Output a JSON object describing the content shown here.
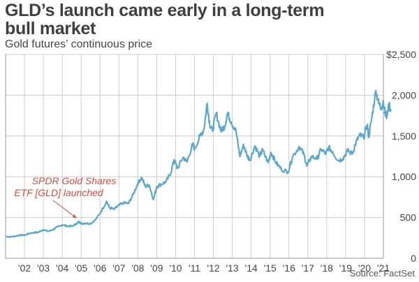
{
  "header": {
    "title_line1": "GLD’s launch came early in a long-term",
    "title_line2": "bull market",
    "subtitle": "Gold futures’ continuous price"
  },
  "source": "Source: FactSet",
  "colors": {
    "line": "#5aa9cc",
    "annotation": "#e04a3a",
    "grid": "#cccccc",
    "axis": "#999999",
    "title": "#3f3f3f"
  },
  "chart_data": {
    "type": "line",
    "title": "GLD’s launch came early in a long-term bull market",
    "subtitle": "Gold futures’ continuous price",
    "xlabel": "",
    "ylabel": "",
    "xlim": [
      2001.0,
      2021.0
    ],
    "ylim": [
      0,
      2500
    ],
    "grid": true,
    "y_axis_side": "right",
    "yticks": [
      {
        "value": 2500,
        "label": "$2,500"
      },
      {
        "value": 2000,
        "label": "2,000"
      },
      {
        "value": 1500,
        "label": "1,500"
      },
      {
        "value": 1000,
        "label": "1,000"
      },
      {
        "value": 500,
        "label": "500"
      },
      {
        "value": 0,
        "label": "0"
      }
    ],
    "xticks": [
      {
        "value": 2002,
        "label": "'02"
      },
      {
        "value": 2003,
        "label": "'03"
      },
      {
        "value": 2004,
        "label": "'04"
      },
      {
        "value": 2005,
        "label": "'05"
      },
      {
        "value": 2006,
        "label": "'06"
      },
      {
        "value": 2007,
        "label": "'07"
      },
      {
        "value": 2008,
        "label": "'08"
      },
      {
        "value": 2009,
        "label": "'09"
      },
      {
        "value": 2010,
        "label": "'10"
      },
      {
        "value": 2011,
        "label": "'11"
      },
      {
        "value": 2012,
        "label": "'12"
      },
      {
        "value": 2013,
        "label": "'13"
      },
      {
        "value": 2014,
        "label": "'14"
      },
      {
        "value": 2015,
        "label": "'15"
      },
      {
        "value": 2016,
        "label": "'16"
      },
      {
        "value": 2017,
        "label": "'17"
      },
      {
        "value": 2018,
        "label": "'18"
      },
      {
        "value": 2019,
        "label": "'19"
      },
      {
        "value": 2020,
        "label": "'20"
      },
      {
        "value": 2021,
        "label": "'21"
      }
    ],
    "series": [
      {
        "name": "Gold futures continuous price",
        "points": [
          [
            2001.0,
            268
          ],
          [
            2001.25,
            262
          ],
          [
            2001.5,
            270
          ],
          [
            2001.75,
            285
          ],
          [
            2002.0,
            282
          ],
          [
            2002.25,
            305
          ],
          [
            2002.5,
            315
          ],
          [
            2002.75,
            320
          ],
          [
            2003.0,
            352
          ],
          [
            2003.25,
            330
          ],
          [
            2003.5,
            350
          ],
          [
            2003.75,
            385
          ],
          [
            2004.0,
            410
          ],
          [
            2004.25,
            395
          ],
          [
            2004.5,
            392
          ],
          [
            2004.75,
            425
          ],
          [
            2004.9,
            450
          ],
          [
            2005.0,
            425
          ],
          [
            2005.25,
            430
          ],
          [
            2005.5,
            425
          ],
          [
            2005.75,
            470
          ],
          [
            2006.0,
            550
          ],
          [
            2006.35,
            700
          ],
          [
            2006.5,
            620
          ],
          [
            2006.75,
            600
          ],
          [
            2007.0,
            650
          ],
          [
            2007.25,
            680
          ],
          [
            2007.5,
            670
          ],
          [
            2007.75,
            780
          ],
          [
            2008.0,
            920
          ],
          [
            2008.2,
            990
          ],
          [
            2008.4,
            880
          ],
          [
            2008.6,
            900
          ],
          [
            2008.83,
            720
          ],
          [
            2009.0,
            880
          ],
          [
            2009.25,
            910
          ],
          [
            2009.5,
            940
          ],
          [
            2009.75,
            1050
          ],
          [
            2009.92,
            1210
          ],
          [
            2010.1,
            1100
          ],
          [
            2010.4,
            1240
          ],
          [
            2010.6,
            1180
          ],
          [
            2010.9,
            1400
          ],
          [
            2011.0,
            1340
          ],
          [
            2011.3,
            1500
          ],
          [
            2011.5,
            1580
          ],
          [
            2011.67,
            1900
          ],
          [
            2011.8,
            1650
          ],
          [
            2011.95,
            1560
          ],
          [
            2012.15,
            1780
          ],
          [
            2012.4,
            1560
          ],
          [
            2012.6,
            1620
          ],
          [
            2012.75,
            1780
          ],
          [
            2012.95,
            1670
          ],
          [
            2013.2,
            1560
          ],
          [
            2013.4,
            1250
          ],
          [
            2013.6,
            1390
          ],
          [
            2013.8,
            1250
          ],
          [
            2013.95,
            1210
          ],
          [
            2014.2,
            1380
          ],
          [
            2014.45,
            1250
          ],
          [
            2014.6,
            1330
          ],
          [
            2014.9,
            1170
          ],
          [
            2015.05,
            1300
          ],
          [
            2015.3,
            1180
          ],
          [
            2015.6,
            1090
          ],
          [
            2015.95,
            1060
          ],
          [
            2016.2,
            1250
          ],
          [
            2016.55,
            1370
          ],
          [
            2016.8,
            1270
          ],
          [
            2016.95,
            1130
          ],
          [
            2017.2,
            1250
          ],
          [
            2017.5,
            1220
          ],
          [
            2017.7,
            1340
          ],
          [
            2017.95,
            1280
          ],
          [
            2018.1,
            1360
          ],
          [
            2018.3,
            1310
          ],
          [
            2018.6,
            1200
          ],
          [
            2018.85,
            1220
          ],
          [
            2019.1,
            1320
          ],
          [
            2019.35,
            1280
          ],
          [
            2019.55,
            1420
          ],
          [
            2019.75,
            1510
          ],
          [
            2019.95,
            1480
          ],
          [
            2020.15,
            1640
          ],
          [
            2020.22,
            1480
          ],
          [
            2020.4,
            1740
          ],
          [
            2020.6,
            2060
          ],
          [
            2020.75,
            1900
          ],
          [
            2020.9,
            1850
          ],
          [
            2021.0,
            1900
          ],
          [
            2021.15,
            1730
          ],
          [
            2021.3,
            1900
          ],
          [
            2021.4,
            1780
          ]
        ]
      }
    ],
    "annotations": [
      {
        "text_line1": "SPDR Gold Shares",
        "text_line2": "ETF  [GLD] launched",
        "x": 2004.9,
        "y": 450,
        "arrow": true
      }
    ]
  }
}
